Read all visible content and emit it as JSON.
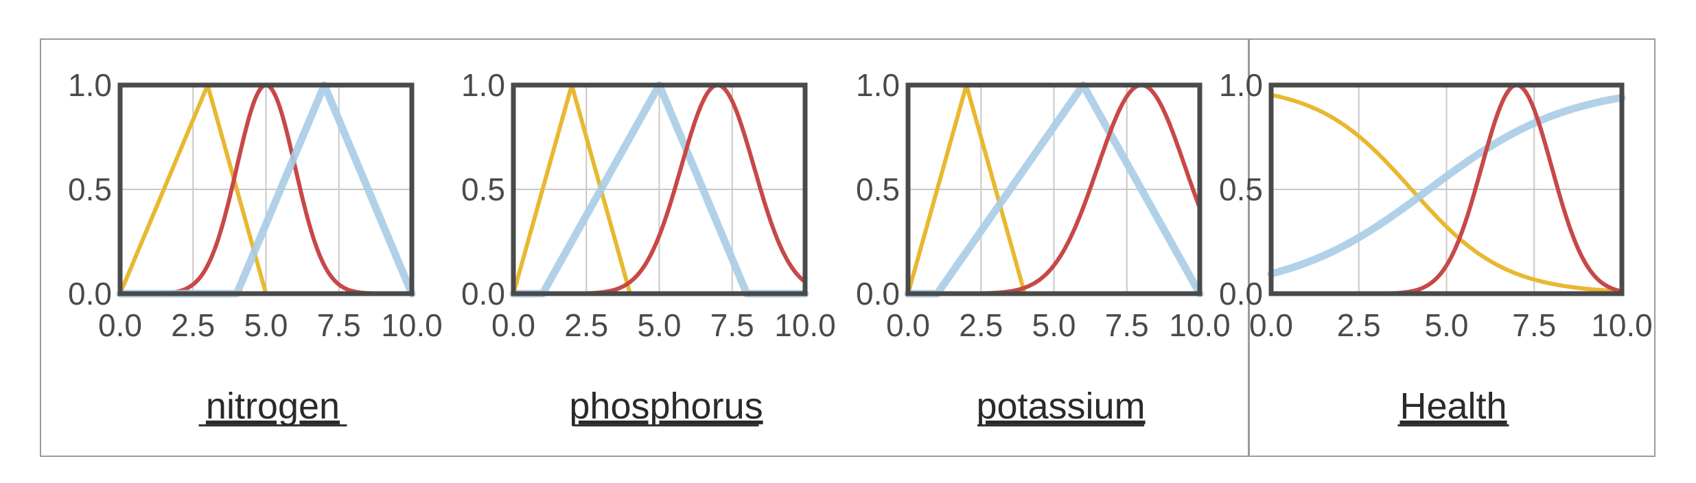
{
  "colors": {
    "yellow": "#e8b830",
    "red": "#c84848",
    "blue": "#a8cce6",
    "frame": "#4a4a4a",
    "grid": "#c8c8c8"
  },
  "chart_data": [
    {
      "type": "line",
      "title": "nitrogen",
      "xlim": [
        0,
        10
      ],
      "ylim": [
        0,
        1
      ],
      "xticks": [
        "0.0",
        "2.5",
        "5.0",
        "7.5",
        "10.0"
      ],
      "yticks": [
        "0.0",
        "0.5",
        "1.0"
      ],
      "grid": true,
      "series": [
        {
          "color": "yellow",
          "shape": "triangle",
          "x": [
            0,
            3,
            5,
            10
          ],
          "y": [
            0,
            1,
            0,
            0
          ]
        },
        {
          "color": "red",
          "shape": "gaussian",
          "mean": 5,
          "sigma": 1.0
        },
        {
          "color": "blue",
          "shape": "triangle",
          "x": [
            0,
            4,
            7,
            10
          ],
          "y": [
            0,
            0,
            1,
            0
          ]
        }
      ]
    },
    {
      "type": "line",
      "title": "phosphorus",
      "xlim": [
        0,
        10
      ],
      "ylim": [
        0,
        1
      ],
      "xticks": [
        "0.0",
        "2.5",
        "5.0",
        "7.5",
        "10.0"
      ],
      "yticks": [
        "0.0",
        "0.5",
        "1.0"
      ],
      "grid": true,
      "series": [
        {
          "color": "yellow",
          "shape": "triangle",
          "x": [
            0,
            2,
            4,
            10
          ],
          "y": [
            0,
            1,
            0,
            0
          ]
        },
        {
          "color": "blue",
          "shape": "triangle",
          "x": [
            0,
            1,
            5,
            8,
            10
          ],
          "y": [
            0,
            0,
            1,
            0,
            0
          ]
        },
        {
          "color": "red",
          "shape": "gaussian",
          "mean": 7,
          "sigma": 1.25
        }
      ]
    },
    {
      "type": "line",
      "title": "potassium",
      "xlim": [
        0,
        10
      ],
      "ylim": [
        0,
        1
      ],
      "xticks": [
        "0.0",
        "2.5",
        "5.0",
        "7.5",
        "10.0"
      ],
      "yticks": [
        "0.0",
        "0.5",
        "1.0"
      ],
      "grid": true,
      "series": [
        {
          "color": "yellow",
          "shape": "triangle",
          "x": [
            0,
            2,
            4,
            10
          ],
          "y": [
            0,
            1,
            0,
            0
          ]
        },
        {
          "color": "blue",
          "shape": "triangle",
          "x": [
            0,
            1,
            6,
            10
          ],
          "y": [
            0,
            0,
            1,
            0
          ]
        },
        {
          "color": "red",
          "shape": "gaussian",
          "mean": 8,
          "sigma": 1.5
        }
      ]
    },
    {
      "type": "line",
      "title": "Health",
      "xlim": [
        0,
        10
      ],
      "ylim": [
        0,
        1
      ],
      "xticks": [
        "0.0",
        "2.5",
        "5.0",
        "7.5",
        "10.0"
      ],
      "yticks": [
        "0.0",
        "0.5",
        "1.0"
      ],
      "grid": true,
      "series": [
        {
          "color": "yellow",
          "shape": "sigmoid-decreasing",
          "center": 4,
          "slope": 0.75
        },
        {
          "color": "blue",
          "shape": "sigmoid-increasing",
          "center": 4.5,
          "slope": 0.5
        },
        {
          "color": "red",
          "shape": "gaussian",
          "mean": 7,
          "sigma": 1.0
        }
      ]
    }
  ]
}
